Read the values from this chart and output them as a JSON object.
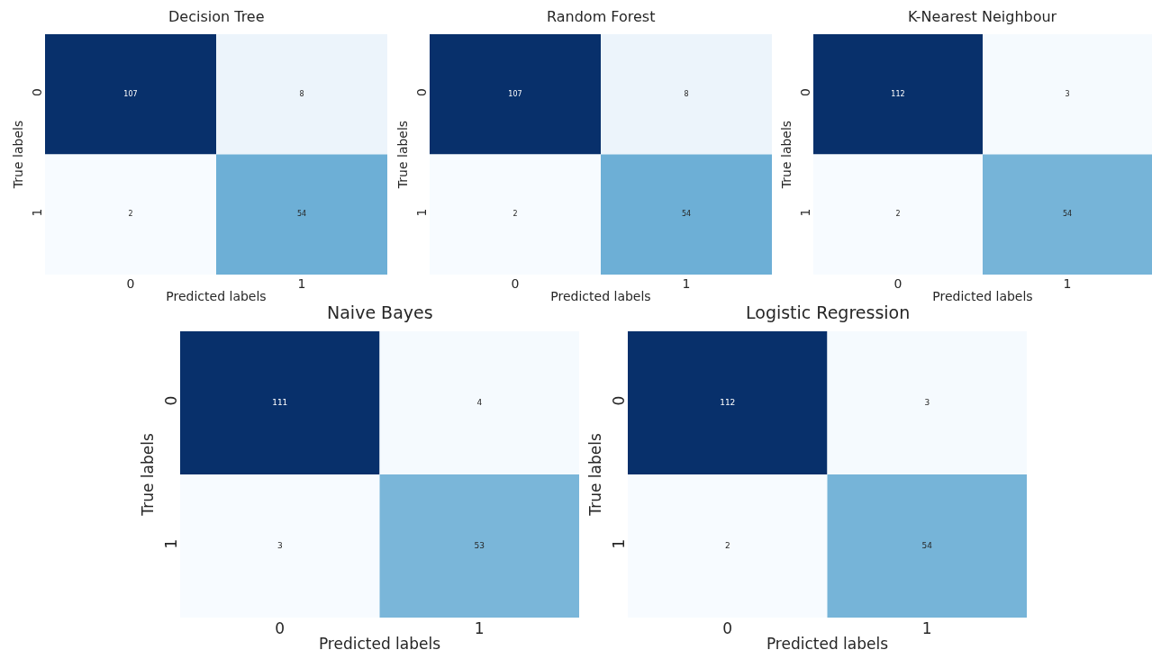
{
  "chart_data": [
    {
      "type": "heatmap",
      "title": "Decision Tree",
      "xlabel": "Predicted labels",
      "ylabel": "True labels",
      "categories": [
        "0",
        "1"
      ],
      "y_categories": [
        "0",
        "1"
      ],
      "cells": [
        [
          107,
          8
        ],
        [
          2,
          54
        ]
      ],
      "data_labels": true
    },
    {
      "type": "heatmap",
      "title": "Random Forest",
      "xlabel": "Predicted labels",
      "ylabel": "True labels",
      "categories": [
        "0",
        "1"
      ],
      "y_categories": [
        "0",
        "1"
      ],
      "cells": [
        [
          107,
          8
        ],
        [
          2,
          54
        ]
      ],
      "data_labels": true
    },
    {
      "type": "heatmap",
      "title": "K-Nearest Neighbour",
      "xlabel": "Predicted labels",
      "ylabel": "True labels",
      "categories": [
        "0",
        "1"
      ],
      "y_categories": [
        "0",
        "1"
      ],
      "cells": [
        [
          112,
          3
        ],
        [
          2,
          54
        ]
      ],
      "data_labels": true
    },
    {
      "type": "heatmap",
      "title": "Naive Bayes",
      "xlabel": "Predicted labels",
      "ylabel": "True labels",
      "categories": [
        "0",
        "1"
      ],
      "y_categories": [
        "0",
        "1"
      ],
      "cells": [
        [
          111,
          4
        ],
        [
          3,
          53
        ]
      ],
      "data_labels": true
    },
    {
      "type": "heatmap",
      "title": "Logistic Regression",
      "xlabel": "Predicted labels",
      "ylabel": "True labels",
      "categories": [
        "0",
        "1"
      ],
      "y_categories": [
        "0",
        "1"
      ],
      "cells": [
        [
          112,
          3
        ],
        [
          2,
          54
        ]
      ],
      "data_labels": true
    }
  ]
}
